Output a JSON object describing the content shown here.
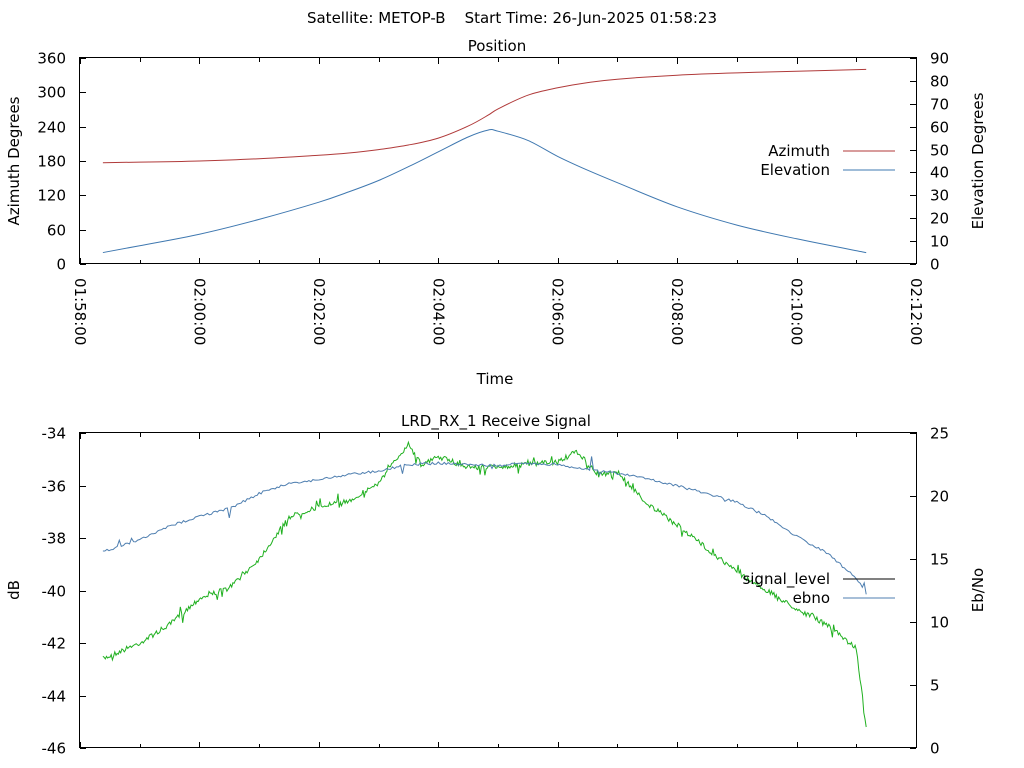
{
  "suptitle": "Satellite: METOP-B    Start Time: 26-Jun-2025 01:58:23",
  "colors": {
    "azimuth": "#b03a3a",
    "elevation": "#3f78b0",
    "signal_level": "#20b020",
    "ebno": "#4f7fb0",
    "legend_signal_level": "#000000"
  },
  "chart_data": [
    {
      "type": "line",
      "title": "Position",
      "xlabel": "Time",
      "ylabel": "Azimuth Degrees",
      "y2label": "Elevation Degrees",
      "xlim": [
        "01:58:00",
        "02:12:00"
      ],
      "xticks": [
        "01:58:00",
        "02:00:00",
        "02:02:00",
        "02:04:00",
        "02:06:00",
        "02:08:00",
        "02:10:00",
        "02:12:00"
      ],
      "ylim": [
        0,
        360
      ],
      "yticks": [
        "0",
        "60",
        "120",
        "180",
        "240",
        "300",
        "360"
      ],
      "y2lim": [
        0,
        90
      ],
      "y2ticks": [
        "0",
        "10",
        "20",
        "30",
        "40",
        "50",
        "60",
        "70",
        "80",
        "90"
      ],
      "legend_position": "right",
      "series": [
        {
          "name": "Azimuth",
          "axis": "left",
          "x": [
            "01:58:23",
            "01:59:00",
            "02:00:00",
            "02:01:00",
            "02:02:00",
            "02:02:30",
            "02:03:00",
            "02:03:30",
            "02:04:00",
            "02:04:30",
            "02:04:50",
            "02:05:00",
            "02:05:30",
            "02:06:00",
            "02:06:30",
            "02:07:00",
            "02:08:00",
            "02:09:00",
            "02:10:00",
            "02:11:10"
          ],
          "values": [
            177,
            178,
            180,
            184,
            190,
            194,
            200,
            208,
            220,
            241,
            260,
            271,
            295,
            308,
            317,
            323,
            330,
            334,
            337,
            340
          ]
        },
        {
          "name": "Elevation",
          "axis": "right",
          "x": [
            "01:58:23",
            "01:59:00",
            "02:00:00",
            "02:01:00",
            "02:02:00",
            "02:02:30",
            "02:03:00",
            "02:03:30",
            "02:04:00",
            "02:04:30",
            "02:04:50",
            "02:05:00",
            "02:05:30",
            "02:06:00",
            "02:06:30",
            "02:07:00",
            "02:08:00",
            "02:09:00",
            "02:10:00",
            "02:11:10"
          ],
          "values": [
            5,
            8,
            13,
            19.5,
            27,
            31.5,
            36.5,
            42.5,
            49,
            55.5,
            58.5,
            58,
            54,
            47,
            41,
            35.5,
            25,
            17,
            11,
            5
          ]
        }
      ]
    },
    {
      "type": "line",
      "title": "LRD_RX_1 Receive Signal",
      "xlabel": "",
      "ylabel": "dB",
      "y2label": "Eb/No",
      "xlim": [
        "01:58:00",
        "02:12:00"
      ],
      "ylim": [
        -46,
        -34
      ],
      "yticks": [
        "-46",
        "-44",
        "-42",
        "-40",
        "-38",
        "-36",
        "-34"
      ],
      "y2lim": [
        0,
        25
      ],
      "y2ticks": [
        "0",
        "5",
        "10",
        "15",
        "20",
        "25"
      ],
      "legend_position": "right",
      "series": [
        {
          "name": "signal_level",
          "axis": "left",
          "x": [
            "01:58:23",
            "01:59:00",
            "01:59:30",
            "02:00:00",
            "02:00:30",
            "02:01:00",
            "02:01:30",
            "02:02:00",
            "02:02:30",
            "02:03:00",
            "02:03:30",
            "02:03:45",
            "02:04:00",
            "02:04:30",
            "02:05:00",
            "02:05:30",
            "02:06:00",
            "02:06:20",
            "02:06:40",
            "02:07:00",
            "02:07:30",
            "02:08:00",
            "02:08:30",
            "02:09:00",
            "02:09:30",
            "02:10:00",
            "02:10:30",
            "02:11:00",
            "02:11:10"
          ],
          "values": [
            -42.6,
            -42.0,
            -41.3,
            -40.3,
            -39.9,
            -38.8,
            -37.2,
            -36.8,
            -36.6,
            -35.9,
            -34.4,
            -35.2,
            -34.9,
            -35.3,
            -35.3,
            -35.2,
            -35.1,
            -34.7,
            -35.6,
            -35.5,
            -36.7,
            -37.5,
            -38.4,
            -39.3,
            -40.0,
            -40.7,
            -41.3,
            -42.2,
            -45.2
          ]
        },
        {
          "name": "ebno",
          "axis": "right",
          "x": [
            "01:58:23",
            "01:59:00",
            "01:59:30",
            "02:00:00",
            "02:00:30",
            "02:01:00",
            "02:01:30",
            "02:02:00",
            "02:02:30",
            "02:03:00",
            "02:03:30",
            "02:04:00",
            "02:04:30",
            "02:05:00",
            "02:05:30",
            "02:06:00",
            "02:06:30",
            "02:07:00",
            "02:07:30",
            "02:08:00",
            "02:08:30",
            "02:09:00",
            "02:09:30",
            "02:10:00",
            "02:10:30",
            "02:11:00",
            "02:11:10"
          ],
          "values": [
            15.6,
            16.5,
            17.6,
            18.4,
            19.0,
            20.2,
            21.0,
            21.3,
            21.7,
            22.0,
            22.5,
            22.6,
            22.5,
            22.4,
            22.6,
            22.5,
            22.1,
            21.8,
            21.4,
            20.8,
            20.2,
            19.5,
            18.4,
            16.8,
            15.5,
            13.5,
            12.2
          ]
        }
      ]
    }
  ]
}
